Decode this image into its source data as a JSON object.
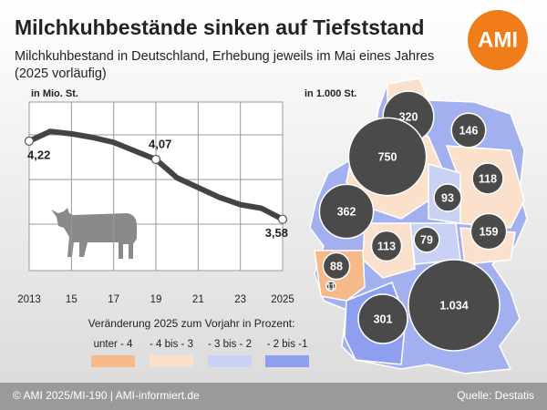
{
  "header": {
    "title": "Milchkuhbestände sinken auf Tiefststand",
    "subtitle_lines": [
      "Milchkuhbestand in Deutschland, Erhebung jeweils im Mai eines Jahres",
      "(2025 vorläufig)"
    ],
    "logo": "AMI"
  },
  "chart_data": [
    {
      "type": "line",
      "y_unit_label": "in Mio. St.",
      "x": [
        2013,
        2014,
        2015,
        2016,
        2017,
        2018,
        2019,
        2020,
        2021,
        2022,
        2023,
        2024,
        2025
      ],
      "series": [
        {
          "color": "#444444",
          "values": [
            4.22,
            4.3,
            4.28,
            4.25,
            4.21,
            4.14,
            4.07,
            3.92,
            3.84,
            3.76,
            3.7,
            3.67,
            3.58
          ],
          "value_labels": [
            "4,22",
            null,
            null,
            null,
            null,
            null,
            "4,07",
            null,
            null,
            null,
            null,
            null,
            "3,58"
          ]
        }
      ],
      "xlim": [
        2013,
        2025
      ],
      "xticks": [
        2013,
        {
          "value": 2015,
          "label": "15"
        },
        {
          "value": 2017,
          "label": "17"
        },
        {
          "value": 2019,
          "label": "19"
        },
        {
          "value": 2021,
          "label": "21"
        },
        {
          "value": 2023,
          "label": "23"
        },
        2025
      ],
      "ylim": [
        3.16,
        4.54
      ]
    },
    {
      "type": "bubble-map",
      "unit_label": "in 1.000 St.",
      "values": [
        320,
        146,
        750,
        118,
        93,
        362,
        159,
        113,
        79,
        88,
        11,
        301,
        1034
      ],
      "value_labels": [
        "320",
        "146",
        "750",
        "118",
        "93",
        "362",
        "159",
        "113",
        "79",
        "88",
        "11",
        "301",
        "1.034"
      ],
      "legend_title": "Veränderung 2025 zum Vorjahr in Prozent:",
      "legend": [
        {
          "label": "unter - 4",
          "color": "#f5b98a"
        },
        {
          "label": "- 4 bis - 3",
          "color": "#fbe0cc"
        },
        {
          "label": "- 3 bis - 2",
          "color": "#c9d2f5"
        },
        {
          "label": "- 2 bis -1",
          "color": "#8f9ff0"
        }
      ]
    }
  ],
  "footer": {
    "left": "© AMI 2025/MI-190 | AMI-informiert.de",
    "right": "Quelle: Destatis"
  }
}
